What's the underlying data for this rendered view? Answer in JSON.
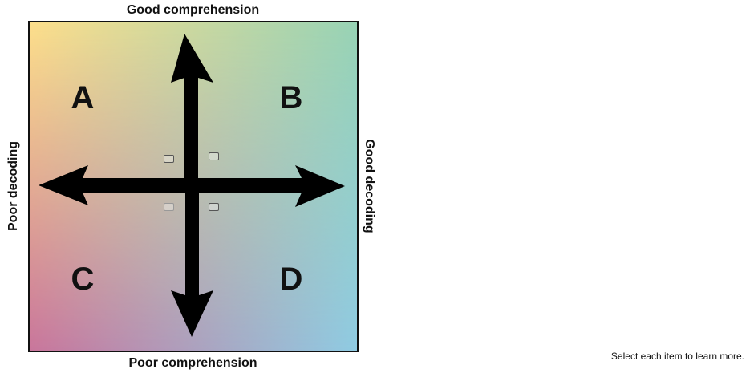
{
  "axes": {
    "top": "Good comprehension",
    "bottom": "Poor comprehension",
    "left": "Poor decoding",
    "right": "Good decoding"
  },
  "quadrants": {
    "a": "A",
    "b": "B",
    "c": "C",
    "d": "D"
  },
  "instruction": "Select each item to learn more.",
  "colors": {
    "top_left": "#fddf8b",
    "top_right": "#98d3b5",
    "bottom_left": "#c9759b",
    "bottom_right": "#8fcbe2",
    "arrows": "#000000"
  },
  "icons": {
    "arrows": "four-way-arrow-icon",
    "hotspots": "hotspot-box-icon"
  }
}
